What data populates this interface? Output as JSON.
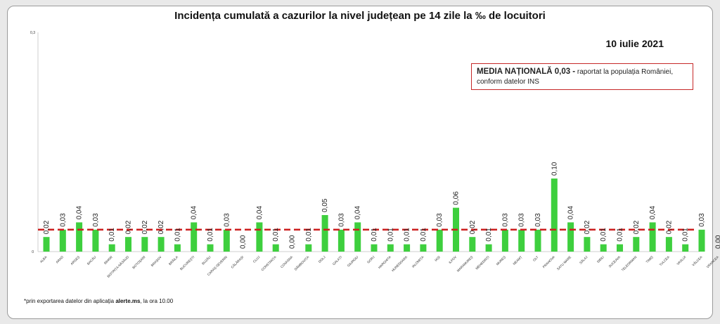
{
  "title": "Incidența cumulată a cazurilor la nivel județean pe 14 zile  la ‰ de locuitori",
  "date": "10 iulie 2021",
  "national": {
    "label": "MEDIA NAȚIONALĂ 0,03 -",
    "text1": " raportat la populația României,",
    "text2": "conform datelor INS"
  },
  "footnote": {
    "pre": "*prin exportarea datelor din aplicația ",
    "bold": "alerte.ms",
    "post": ", la ora 10.00"
  },
  "colors": {
    "bar": "#3ecf3e",
    "mean_line": "#cc1f1f",
    "box_border": "#c62828"
  },
  "chart_data": {
    "type": "bar",
    "categories": [
      "ALBA",
      "ARAD",
      "ARGEȘ",
      "BACĂU",
      "BIHOR",
      "BISTRIȚA-NĂSĂUD",
      "BOTOȘANI",
      "BRAȘOV",
      "BRĂILA",
      "BUCUREȘTI",
      "BUZĂU",
      "CARAȘ-SEVERIN",
      "CĂLĂRAȘI",
      "CLUJ",
      "CONSTANȚA",
      "COVASNA",
      "DÂMBOVIȚA",
      "DOLJ",
      "GALAȚI",
      "GIURGIU",
      "GORJ",
      "HARGHITA",
      "HUNEDOARA",
      "IALOMIȚA",
      "IAȘI",
      "ILFOV",
      "MARAMUREȘ",
      "MEHEDINȚI",
      "MUREȘ",
      "NEAMȚ",
      "OLT",
      "PRAHOVA",
      "SATU MARE",
      "SĂLAJ",
      "SIBIU",
      "SUCEAVA",
      "TELEORMAN",
      "TIMIȘ",
      "TULCEA",
      "VASLUI",
      "VÂLCEA",
      "VRANCEA"
    ],
    "values": [
      0.02,
      0.03,
      0.04,
      0.03,
      0.01,
      0.02,
      0.02,
      0.02,
      0.01,
      0.04,
      0.01,
      0.03,
      0.0,
      0.04,
      0.01,
      0.0,
      0.01,
      0.05,
      0.03,
      0.04,
      0.01,
      0.01,
      0.01,
      0.01,
      0.03,
      0.06,
      0.02,
      0.01,
      0.03,
      0.03,
      0.03,
      0.1,
      0.04,
      0.02,
      0.01,
      0.01,
      0.02,
      0.04,
      0.02,
      0.01,
      0.03,
      0.0
    ],
    "labels": [
      "0,02",
      "0,03",
      "0,04",
      "0,03",
      "0,01",
      "0,02",
      "0,02",
      "0,02",
      "0,01",
      "0,04",
      "0,01",
      "0,03",
      "0,00",
      "0,04",
      "0,01",
      "0,00",
      "0,01",
      "0,05",
      "0,03",
      "0,04",
      "0,01",
      "0,01",
      "0,01",
      "0,01",
      "0,03",
      "0,06",
      "0,02",
      "0,01",
      "0,03",
      "0,03",
      "0,03",
      "0,10",
      "0,04",
      "0,02",
      "0,01",
      "0,01",
      "0,02",
      "0,04",
      "0,02",
      "0,01",
      "0,03",
      "0,00"
    ],
    "mean": 0.03,
    "ylim": [
      0,
      0.3
    ],
    "yticks": [
      "0,3",
      "0"
    ]
  }
}
